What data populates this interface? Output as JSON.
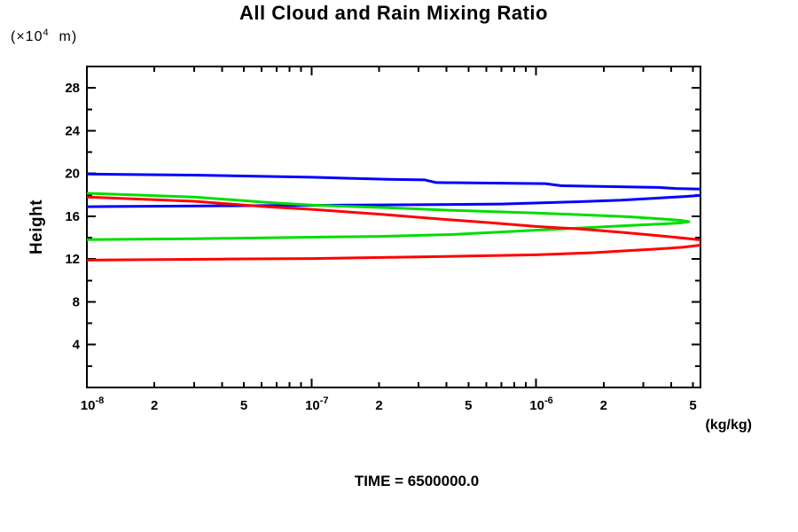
{
  "page": {
    "background": "#ffffff"
  },
  "chart_data": {
    "type": "line",
    "title": "All Cloud and Rain Mixing Ratio",
    "y_axis_label": "Height",
    "y_units_prefix": "(×10",
    "y_units_exp": "4",
    "y_units_suffix": "  m)",
    "x_units": "(kg/kg)",
    "time_label": "TIME = 6500000.0",
    "x_scale": "log",
    "x_range": [
      1e-08,
      5.4e-06
    ],
    "y_range": [
      0,
      30
    ],
    "grid": false,
    "legend": false,
    "axis_color": "#000000",
    "x_ticks": [
      {
        "v": 1e-08,
        "major": true,
        "base": "10",
        "exp": "-8"
      },
      {
        "v": 2e-08,
        "label": "2"
      },
      {
        "v": 3e-08
      },
      {
        "v": 4e-08
      },
      {
        "v": 5e-08,
        "label": "5"
      },
      {
        "v": 6e-08
      },
      {
        "v": 7e-08
      },
      {
        "v": 8e-08
      },
      {
        "v": 9e-08
      },
      {
        "v": 1e-07,
        "major": true,
        "base": "10",
        "exp": "-7"
      },
      {
        "v": 2e-07,
        "label": "2"
      },
      {
        "v": 3e-07
      },
      {
        "v": 4e-07
      },
      {
        "v": 5e-07,
        "label": "5"
      },
      {
        "v": 6e-07
      },
      {
        "v": 7e-07
      },
      {
        "v": 8e-07
      },
      {
        "v": 9e-07
      },
      {
        "v": 1e-06,
        "major": true,
        "base": "10",
        "exp": "-6"
      },
      {
        "v": 2e-06,
        "label": "2"
      },
      {
        "v": 3e-06
      },
      {
        "v": 4e-06
      },
      {
        "v": 5e-06,
        "label": "5"
      }
    ],
    "y_ticks": [
      {
        "v": 2
      },
      {
        "v": 4,
        "label": "4"
      },
      {
        "v": 6
      },
      {
        "v": 8,
        "label": "8"
      },
      {
        "v": 10
      },
      {
        "v": 12,
        "label": "12"
      },
      {
        "v": 14
      },
      {
        "v": 16,
        "label": "16"
      },
      {
        "v": 18
      },
      {
        "v": 20,
        "label": "20"
      },
      {
        "v": 22
      },
      {
        "v": 24,
        "label": "24"
      },
      {
        "v": 26
      },
      {
        "v": 28,
        "label": "28"
      }
    ],
    "series": [
      {
        "name": "profile-blue",
        "color": "#0000ff",
        "branches": [
          [
            [
              1e-08,
              19.95
            ],
            [
              3e-08,
              19.85
            ],
            [
              1e-07,
              19.65
            ],
            [
              2.2e-07,
              19.45
            ],
            [
              3.2e-07,
              19.4
            ],
            [
              3.6e-07,
              19.15
            ],
            [
              1.1e-06,
              19.05
            ],
            [
              1.3e-06,
              18.85
            ],
            [
              2.5e-06,
              18.75
            ],
            [
              3.5e-06,
              18.7
            ],
            [
              4.2e-06,
              18.6
            ],
            [
              5.4e-06,
              18.55
            ]
          ],
          [
            [
              5.4e-06,
              17.95
            ],
            [
              4.6e-06,
              17.85
            ],
            [
              3.5e-06,
              17.7
            ],
            [
              2.4e-06,
              17.5
            ],
            [
              1.5e-06,
              17.35
            ],
            [
              7e-07,
              17.15
            ],
            [
              3e-07,
              17.08
            ],
            [
              1e-07,
              17.02
            ],
            [
              4e-08,
              16.98
            ],
            [
              1e-08,
              16.9
            ]
          ]
        ]
      },
      {
        "name": "profile-green",
        "color": "#00dd00",
        "branches": [
          [
            [
              1e-08,
              18.15
            ],
            [
              3e-08,
              17.8
            ],
            [
              6.3e-08,
              17.3
            ],
            [
              1e-07,
              17.05
            ],
            [
              2.2e-07,
              16.8
            ],
            [
              4.3e-07,
              16.55
            ],
            [
              1e-06,
              16.3
            ],
            [
              1.8e-06,
              16.1
            ],
            [
              2.6e-06,
              15.95
            ],
            [
              3.6e-06,
              15.75
            ],
            [
              4.4e-06,
              15.62
            ],
            [
              4.8e-06,
              15.5
            ],
            [
              4.4e-06,
              15.38
            ],
            [
              3.6e-06,
              15.28
            ],
            [
              2.4e-06,
              15.1
            ],
            [
              1.4e-06,
              14.85
            ],
            [
              1e-06,
              14.7
            ],
            [
              4.3e-07,
              14.3
            ],
            [
              2e-07,
              14.12
            ],
            [
              1e-07,
              14.05
            ],
            [
              3e-08,
              13.9
            ],
            [
              1e-08,
              13.82
            ]
          ]
        ]
      },
      {
        "name": "profile-red",
        "color": "#ff0000",
        "branches": [
          [
            [
              1e-08,
              17.8
            ],
            [
              3e-08,
              17.4
            ],
            [
              6.3e-08,
              16.9
            ],
            [
              1e-07,
              16.65
            ],
            [
              2e-07,
              16.2
            ],
            [
              4e-07,
              15.7
            ],
            [
              6.3e-07,
              15.4
            ],
            [
              1e-06,
              15.05
            ],
            [
              1.6e-06,
              14.8
            ],
            [
              2.4e-06,
              14.5
            ],
            [
              3.5e-06,
              14.2
            ],
            [
              5.4e-06,
              13.8
            ]
          ],
          [
            [
              1e-08,
              11.9
            ],
            [
              4e-08,
              12.0
            ],
            [
              1e-07,
              12.05
            ],
            [
              3e-07,
              12.2
            ],
            [
              1e-06,
              12.4
            ],
            [
              1.8e-06,
              12.6
            ],
            [
              2.4e-06,
              12.75
            ],
            [
              3.5e-06,
              12.95
            ],
            [
              4.5e-06,
              13.1
            ],
            [
              5.4e-06,
              13.3
            ]
          ]
        ]
      }
    ]
  }
}
